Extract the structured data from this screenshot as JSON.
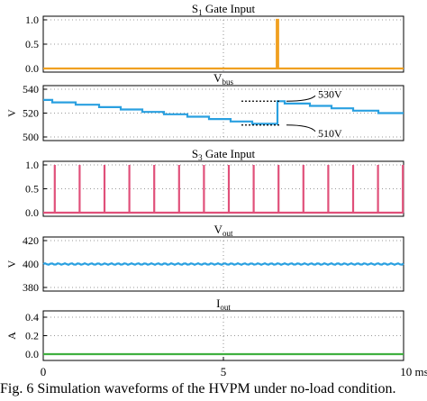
{
  "caption": "Fig. 6 Simulation waveforms of the HVPM under no-load condition.",
  "chart_data": [
    {
      "type": "line",
      "title": "S1 Gate Input",
      "title_parts": {
        "main": "S",
        "sub": "1",
        "rest": " Gate Input"
      },
      "xlim": [
        0,
        10
      ],
      "ylim": [
        0,
        1
      ],
      "yticks": [
        "1.0",
        "0.5",
        "0.0"
      ],
      "ytick_values": [
        1.0,
        0.5,
        0.0
      ],
      "ylabel": "",
      "grid": true,
      "series": [
        {
          "color": "#f0a020",
          "points": [
            [
              0,
              0
            ],
            [
              6.48,
              0
            ],
            [
              6.48,
              1
            ],
            [
              6.52,
              1
            ],
            [
              6.52,
              0
            ],
            [
              10,
              0
            ]
          ]
        }
      ]
    },
    {
      "type": "line",
      "title": "Vbus",
      "title_parts": {
        "main": "V",
        "sub": "bus",
        "rest": ""
      },
      "xlim": [
        0,
        10
      ],
      "ylim": [
        500,
        540
      ],
      "yticks": [
        "540",
        "520",
        "500"
      ],
      "ytick_values": [
        540,
        520,
        500
      ],
      "ylabel": "V",
      "grid": true,
      "annotations": [
        {
          "text": "530V",
          "level": 530,
          "line_x": [
            5.5,
            6.6
          ]
        },
        {
          "text": "510V",
          "level": 510,
          "line_x": [
            5.5,
            6.6
          ]
        }
      ],
      "series": [
        {
          "color": "#2aa0e0",
          "points": [
            [
              0,
              531
            ],
            [
              0.25,
              531
            ],
            [
              0.25,
              529
            ],
            [
              0.9,
              529
            ],
            [
              0.9,
              527
            ],
            [
              1.55,
              527
            ],
            [
              1.55,
              525
            ],
            [
              2.15,
              525
            ],
            [
              2.15,
              523
            ],
            [
              2.75,
              523
            ],
            [
              2.75,
              521
            ],
            [
              3.35,
              521
            ],
            [
              3.35,
              519
            ],
            [
              4.0,
              519
            ],
            [
              4.0,
              517
            ],
            [
              4.6,
              517
            ],
            [
              4.6,
              515
            ],
            [
              5.2,
              515
            ],
            [
              5.2,
              513
            ],
            [
              5.8,
              513
            ],
            [
              5.8,
              511
            ],
            [
              6.5,
              511
            ],
            [
              6.5,
              530
            ],
            [
              6.7,
              530
            ],
            [
              6.7,
              528
            ],
            [
              7.4,
              528
            ],
            [
              7.4,
              526
            ],
            [
              8.0,
              526
            ],
            [
              8.0,
              524
            ],
            [
              8.6,
              524
            ],
            [
              8.6,
              522
            ],
            [
              9.3,
              522
            ],
            [
              9.3,
              520
            ],
            [
              10,
              520
            ]
          ]
        }
      ]
    },
    {
      "type": "line",
      "title": "S3 Gate Input",
      "title_parts": {
        "main": "S",
        "sub": "3",
        "rest": " Gate Input"
      },
      "xlim": [
        0,
        10
      ],
      "ylim": [
        0,
        1
      ],
      "yticks": [
        "1.0",
        "0.5",
        "0.0"
      ],
      "ytick_values": [
        1.0,
        0.5,
        0.0
      ],
      "ylabel": "",
      "grid": true,
      "pulses": {
        "color": "#e0507a",
        "times": [
          0.32,
          1.01,
          1.7,
          2.39,
          3.08,
          3.77,
          4.46,
          5.15,
          5.84,
          6.53,
          7.22,
          7.91,
          8.6,
          9.29,
          9.98
        ]
      }
    },
    {
      "type": "line",
      "title": "Vout",
      "title_parts": {
        "main": "V",
        "sub": "out",
        "rest": ""
      },
      "xlim": [
        0,
        10
      ],
      "ylim": [
        380,
        420
      ],
      "yticks": [
        "420",
        "400",
        "380"
      ],
      "ytick_values": [
        420,
        400,
        380
      ],
      "ylabel": "V",
      "grid": true,
      "series": [
        {
          "color": "#2aa0e0",
          "constant": 400,
          "ripple": 0.6
        }
      ]
    },
    {
      "type": "line",
      "title": "Iout",
      "title_parts": {
        "main": "I",
        "sub": "out",
        "rest": ""
      },
      "xlim": [
        0,
        10
      ],
      "ylim": [
        0,
        0.4
      ],
      "yticks": [
        "0.4",
        "0.2",
        "0.0"
      ],
      "ytick_values": [
        0.4,
        0.2,
        0.0
      ],
      "ylabel": "A",
      "grid": true,
      "xticks": [
        "0",
        "5",
        "10 ms"
      ],
      "xtick_values": [
        0,
        5,
        10
      ],
      "series": [
        {
          "color": "#40b040",
          "constant": 0.0
        }
      ]
    }
  ]
}
